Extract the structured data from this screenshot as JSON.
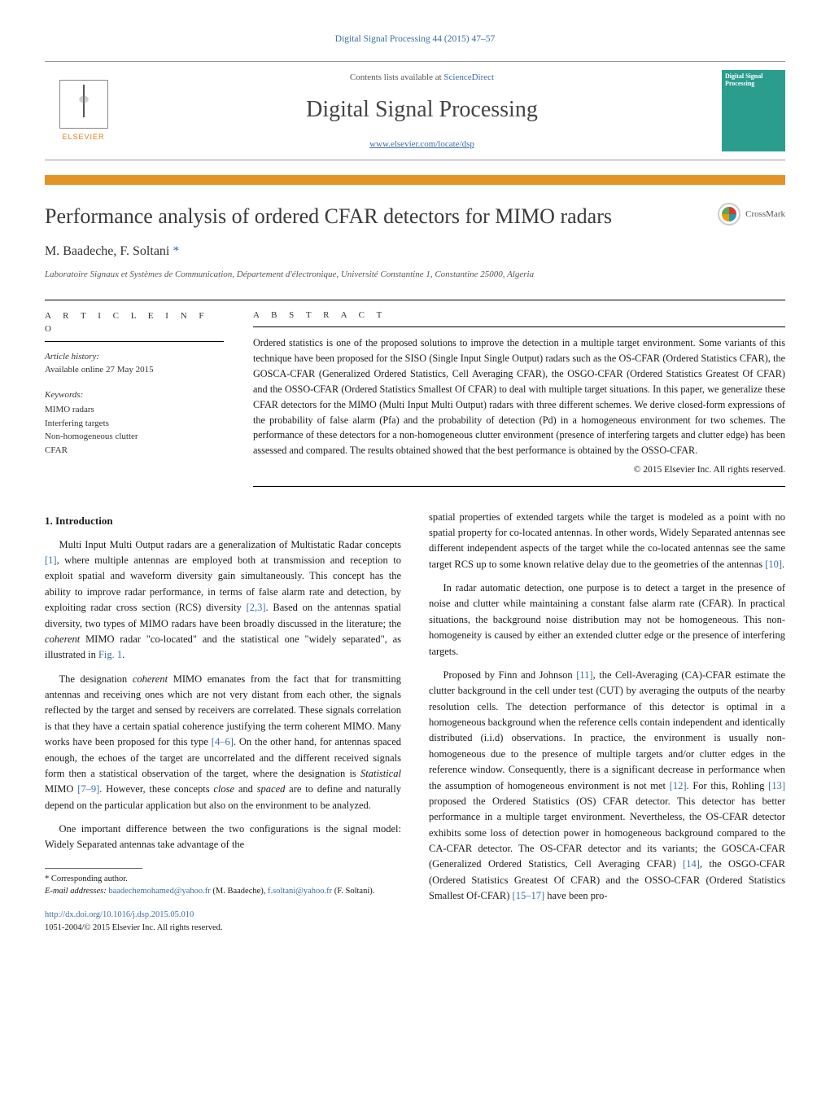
{
  "top_citation": "Digital Signal Processing 44 (2015) 47–57",
  "top_citation_color": "#3a6ea5",
  "header": {
    "contents_prefix": "Contents lists available at ",
    "contents_link": "ScienceDirect",
    "journal_name": "Digital Signal Processing",
    "journal_url": "www.elsevier.com/locate/dsp",
    "elsevier_label": "ELSEVIER",
    "cover_text": "Digital Signal Processing"
  },
  "colors": {
    "accent_orange": "#e39427",
    "link_blue": "#3a6ea5",
    "cover_teal": "#2a9d8f",
    "text": "#1a1a1a",
    "rule": "#000000",
    "background": "#ffffff"
  },
  "typography": {
    "title_fontsize_pt": 20,
    "journal_name_fontsize_pt": 21,
    "body_fontsize_pt": 9.5,
    "abstract_fontsize_pt": 9,
    "font_family": "Georgia / Times-like serif"
  },
  "title": "Performance analysis of ordered CFAR detectors for MIMO radars",
  "crossmark_label": "CrossMark",
  "authors_line": "M. Baadeche, F. Soltani",
  "corresponding_marker": "*",
  "affiliation": "Laboratoire Signaux et Systèmes de Communication, Département d'électronique, Université Constantine 1, Constantine 25000, Algeria",
  "article_info": {
    "heading": "a r t i c l e   i n f o",
    "history_label": "Article history:",
    "history_line": "Available online 27 May 2015",
    "keywords_label": "Keywords:",
    "keywords": [
      "MIMO radars",
      "Interfering targets",
      "Non-homogeneous clutter",
      "CFAR"
    ]
  },
  "abstract": {
    "heading": "a b s t r a c t",
    "text": "Ordered statistics is one of the proposed solutions to improve the detection in a multiple target environment. Some variants of this technique have been proposed for the SISO (Single Input Single Output) radars such as the OS-CFAR (Ordered Statistics CFAR), the GOSCA-CFAR (Generalized Ordered Statistics, Cell Averaging CFAR), the OSGO-CFAR (Ordered Statistics Greatest Of CFAR) and the OSSO-CFAR (Ordered Statistics Smallest Of CFAR) to deal with multiple target situations. In this paper, we generalize these CFAR detectors for the MIMO (Multi Input Multi Output) radars with three different schemes. We derive closed-form expressions of the probability of false alarm (Pfa) and the probability of detection (Pd) in a homogeneous environment for two schemes. The performance of these detectors for a non-homogeneous clutter environment (presence of interfering targets and clutter edge) has been assessed and compared. The results obtained showed that the best performance is obtained by the OSSO-CFAR.",
    "copyright": "© 2015 Elsevier Inc. All rights reserved."
  },
  "body": {
    "section_number": "1.",
    "section_title": "Introduction",
    "p1": "Multi Input Multi Output radars are a generalization of Multistatic Radar concepts [1], where multiple antennas are employed both at transmission and reception to exploit spatial and waveform diversity gain simultaneously. This concept has the ability to improve radar performance, in terms of false alarm rate and detection, by exploiting radar cross section (RCS) diversity [2,3]. Based on the antennas spatial diversity, two types of MIMO radars have been broadly discussed in the literature; the coherent MIMO radar \"co-located\" and the statistical one \"widely separated\", as illustrated in Fig. 1.",
    "p2": "The designation coherent MIMO emanates from the fact that for transmitting antennas and receiving ones which are not very distant from each other, the signals reflected by the target and sensed by receivers are correlated. These signals correlation is that they have a certain spatial coherence justifying the term coherent MIMO. Many works have been proposed for this type [4–6]. On the other hand, for antennas spaced enough, the echoes of the target are uncorrelated and the different received signals form then a statistical observation of the target, where the designation is Statistical MIMO [7–9]. However, these concepts close and spaced are to define and naturally depend on the particular application but also on the environment to be analyzed.",
    "p3": "One important difference between the two configurations is the signal model: Widely Separated antennas take advantage of the",
    "p4": "spatial properties of extended targets while the target is modeled as a point with no spatial property for co-located antennas. In other words, Widely Separated antennas see different independent aspects of the target while the co-located antennas see the same target RCS up to some known relative delay due to the geometries of the antennas [10].",
    "p5": "In radar automatic detection, one purpose is to detect a target in the presence of noise and clutter while maintaining a constant false alarm rate (CFAR). In practical situations, the background noise distribution may not be homogeneous. This non-homogeneity is caused by either an extended clutter edge or the presence of interfering targets.",
    "p6": "Proposed by Finn and Johnson [11], the Cell-Averaging (CA)-CFAR estimate the clutter background in the cell under test (CUT) by averaging the outputs of the nearby resolution cells. The detection performance of this detector is optimal in a homogeneous background when the reference cells contain independent and identically distributed (i.i.d) observations. In practice, the environment is usually non-homogeneous due to the presence of multiple targets and/or clutter edges in the reference window. Consequently, there is a significant decrease in performance when the assumption of homogeneous environment is not met [12]. For this, Rohling [13] proposed the Ordered Statistics (OS) CFAR detector. This detector has better performance in a multiple target environment. Nevertheless, the OS-CFAR detector exhibits some loss of detection power in homogeneous background compared to the CA-CFAR detector. The OS-CFAR detector and its variants; the GOSCA-CFAR (Generalized Ordered Statistics, Cell Averaging CFAR) [14], the OSGO-CFAR (Ordered Statistics Greatest Of CFAR) and the OSSO-CFAR (Ordered Statistics Smallest Of-CFAR) [15–17] have been pro-"
  },
  "footnote": {
    "corr_label": "Corresponding author.",
    "email_label": "E-mail addresses:",
    "email1": "baadechemohamed@yahoo.fr",
    "email1_who": "(M. Baadeche)",
    "email2": "f.soltani@yahoo.fr",
    "email2_who": "(F. Soltani)."
  },
  "doi": {
    "url": "http://dx.doi.org/10.1016/j.dsp.2015.05.010",
    "issn_line": "1051-2004/© 2015 Elsevier Inc. All rights reserved."
  }
}
